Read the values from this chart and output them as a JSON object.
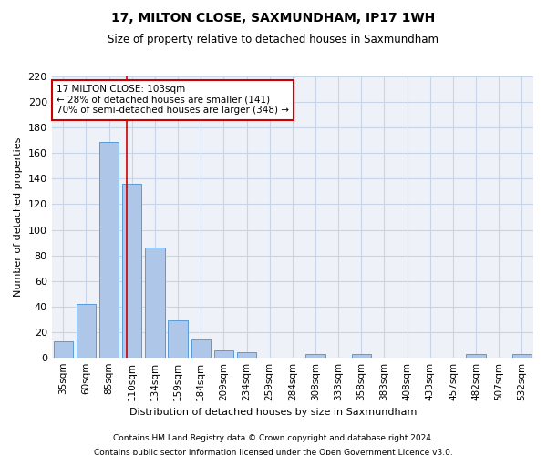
{
  "title": "17, MILTON CLOSE, SAXMUNDHAM, IP17 1WH",
  "subtitle": "Size of property relative to detached houses in Saxmundham",
  "xlabel": "Distribution of detached houses by size in Saxmundham",
  "ylabel": "Number of detached properties",
  "footer_line1": "Contains HM Land Registry data © Crown copyright and database right 2024.",
  "footer_line2": "Contains public sector information licensed under the Open Government Licence v3.0.",
  "categories": [
    "35sqm",
    "60sqm",
    "85sqm",
    "110sqm",
    "134sqm",
    "159sqm",
    "184sqm",
    "209sqm",
    "234sqm",
    "259sqm",
    "284sqm",
    "308sqm",
    "333sqm",
    "358sqm",
    "383sqm",
    "408sqm",
    "433sqm",
    "457sqm",
    "482sqm",
    "507sqm",
    "532sqm"
  ],
  "values": [
    13,
    42,
    169,
    136,
    86,
    29,
    14,
    6,
    4,
    0,
    0,
    3,
    0,
    3,
    0,
    0,
    0,
    0,
    3,
    0,
    3
  ],
  "bar_color": "#aec6e8",
  "bar_edge_color": "#5b9bd5",
  "grid_color": "#c8d4e8",
  "bg_color": "#eef2f8",
  "vline_x": 2.78,
  "vline_color": "#cc0000",
  "annotation_text": "17 MILTON CLOSE: 103sqm\n← 28% of detached houses are smaller (141)\n70% of semi-detached houses are larger (348) →",
  "annotation_box_color": "#cc0000",
  "ylim": [
    0,
    220
  ],
  "yticks": [
    0,
    20,
    40,
    60,
    80,
    100,
    120,
    140,
    160,
    180,
    200,
    220
  ]
}
